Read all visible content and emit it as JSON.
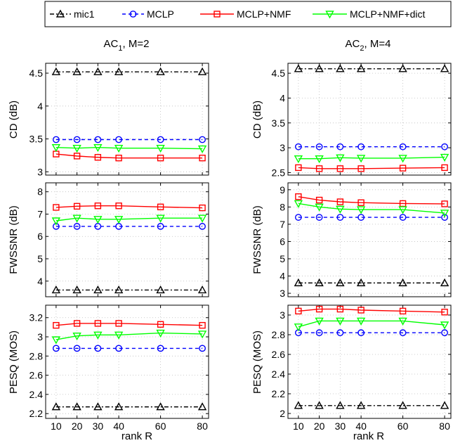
{
  "legend": {
    "entries": [
      {
        "label": "mic1",
        "color": "#000000",
        "dash": "6,3,2,3",
        "marker": "triangle-up"
      },
      {
        "label": "MCLP",
        "color": "#0000ff",
        "dash": "5,4",
        "marker": "circle"
      },
      {
        "label": "MCLP+NMF",
        "color": "#ff0000",
        "dash": "",
        "marker": "square"
      },
      {
        "label": "MCLP+NMF+dict",
        "color": "#00ff00",
        "dash": "",
        "marker": "triangle-down"
      }
    ]
  },
  "columns": [
    {
      "title_main": "AC",
      "title_sub": "1",
      "title_rest": ", M=2"
    },
    {
      "title_main": "AC",
      "title_sub": "2",
      "title_rest": ", M=4"
    }
  ],
  "xlabel": "rank R",
  "chart_data": [
    {
      "type": "line",
      "title": "AC1, M=2",
      "ylabel": "CD (dB)",
      "x": [
        10,
        20,
        30,
        40,
        60,
        80
      ],
      "xlim": [
        5,
        83
      ],
      "ylim": [
        2.95,
        4.65
      ],
      "yticks": [
        3,
        3.5,
        4,
        4.5
      ],
      "grid": true,
      "series": [
        {
          "name": "mic1",
          "values": [
            4.52,
            4.52,
            4.52,
            4.52,
            4.52,
            4.52
          ]
        },
        {
          "name": "MCLP",
          "values": [
            3.49,
            3.49,
            3.49,
            3.49,
            3.49,
            3.49
          ]
        },
        {
          "name": "MCLP+NMF",
          "values": [
            3.27,
            3.24,
            3.22,
            3.21,
            3.21,
            3.21
          ]
        },
        {
          "name": "MCLP+NMF+dict",
          "values": [
            3.37,
            3.36,
            3.37,
            3.36,
            3.36,
            3.35
          ]
        }
      ]
    },
    {
      "type": "line",
      "title": "AC2, M=4",
      "ylabel": "CD (dB)",
      "x": [
        10,
        20,
        30,
        40,
        60,
        80
      ],
      "xlim": [
        5,
        83
      ],
      "ylim": [
        2.45,
        4.7
      ],
      "yticks": [
        2.5,
        3,
        3.5,
        4,
        4.5
      ],
      "grid": true,
      "series": [
        {
          "name": "mic1",
          "values": [
            4.59,
            4.59,
            4.59,
            4.59,
            4.59,
            4.59
          ]
        },
        {
          "name": "MCLP",
          "values": [
            3.02,
            3.02,
            3.02,
            3.02,
            3.02,
            3.02
          ]
        },
        {
          "name": "MCLP+NMF",
          "values": [
            2.6,
            2.58,
            2.58,
            2.58,
            2.59,
            2.6
          ]
        },
        {
          "name": "MCLP+NMF+dict",
          "values": [
            2.78,
            2.78,
            2.8,
            2.79,
            2.79,
            2.81
          ]
        }
      ]
    },
    {
      "type": "line",
      "title": "AC1, M=2",
      "ylabel": "FWSSNR (dB)",
      "x": [
        10,
        20,
        30,
        40,
        60,
        80
      ],
      "xlim": [
        5,
        83
      ],
      "ylim": [
        3.3,
        8.4
      ],
      "yticks": [
        4,
        5,
        6,
        7,
        8
      ],
      "grid": true,
      "series": [
        {
          "name": "mic1",
          "values": [
            3.6,
            3.6,
            3.6,
            3.6,
            3.6,
            3.6
          ]
        },
        {
          "name": "MCLP",
          "values": [
            6.45,
            6.45,
            6.45,
            6.45,
            6.45,
            6.45
          ]
        },
        {
          "name": "MCLP+NMF",
          "values": [
            7.3,
            7.35,
            7.37,
            7.37,
            7.32,
            7.28
          ]
        },
        {
          "name": "MCLP+NMF+dict",
          "values": [
            6.7,
            6.82,
            6.77,
            6.77,
            6.82,
            6.82
          ]
        }
      ]
    },
    {
      "type": "line",
      "title": "AC2, M=4",
      "ylabel": "FWSSNR (dB)",
      "x": [
        10,
        20,
        30,
        40,
        60,
        80
      ],
      "xlim": [
        5,
        83
      ],
      "ylim": [
        2.8,
        9.4
      ],
      "yticks": [
        3,
        4,
        5,
        6,
        7,
        8,
        9
      ],
      "grid": true,
      "series": [
        {
          "name": "mic1",
          "values": [
            3.6,
            3.6,
            3.6,
            3.6,
            3.6,
            3.6
          ]
        },
        {
          "name": "MCLP",
          "values": [
            7.4,
            7.4,
            7.4,
            7.4,
            7.4,
            7.4
          ]
        },
        {
          "name": "MCLP+NMF",
          "values": [
            8.6,
            8.4,
            8.3,
            8.25,
            8.2,
            8.18
          ]
        },
        {
          "name": "MCLP+NMF+dict",
          "values": [
            8.2,
            8.0,
            7.88,
            7.85,
            7.85,
            7.65
          ]
        }
      ]
    },
    {
      "type": "line",
      "title": "AC1, M=2",
      "ylabel": "PESQ (MOS)",
      "x": [
        10,
        20,
        30,
        40,
        60,
        80
      ],
      "xlim": [
        5,
        83
      ],
      "ylim": [
        2.15,
        3.33
      ],
      "yticks": [
        2.2,
        2.4,
        2.6,
        2.8,
        3,
        3.2
      ],
      "grid": true,
      "series": [
        {
          "name": "mic1",
          "values": [
            2.27,
            2.27,
            2.27,
            2.27,
            2.27,
            2.27
          ]
        },
        {
          "name": "MCLP",
          "values": [
            2.88,
            2.88,
            2.88,
            2.88,
            2.88,
            2.88
          ]
        },
        {
          "name": "MCLP+NMF",
          "values": [
            3.12,
            3.14,
            3.14,
            3.14,
            3.13,
            3.12
          ]
        },
        {
          "name": "MCLP+NMF+dict",
          "values": [
            2.97,
            3.01,
            3.02,
            3.02,
            3.04,
            3.03
          ]
        }
      ]
    },
    {
      "type": "line",
      "title": "AC2, M=4",
      "ylabel": "PESQ (MOS)",
      "x": [
        10,
        20,
        30,
        40,
        60,
        80
      ],
      "xlim": [
        5,
        83
      ],
      "ylim": [
        1.95,
        3.1
      ],
      "yticks": [
        2,
        2.2,
        2.4,
        2.6,
        2.8,
        3
      ],
      "grid": true,
      "series": [
        {
          "name": "mic1",
          "values": [
            2.08,
            2.08,
            2.08,
            2.08,
            2.08,
            2.08
          ]
        },
        {
          "name": "MCLP",
          "values": [
            2.82,
            2.82,
            2.82,
            2.82,
            2.82,
            2.82
          ]
        },
        {
          "name": "MCLP+NMF",
          "values": [
            3.04,
            3.06,
            3.06,
            3.05,
            3.04,
            3.03
          ]
        },
        {
          "name": "MCLP+NMF+dict",
          "values": [
            2.88,
            2.94,
            2.94,
            2.94,
            2.94,
            2.9
          ]
        }
      ]
    }
  ]
}
